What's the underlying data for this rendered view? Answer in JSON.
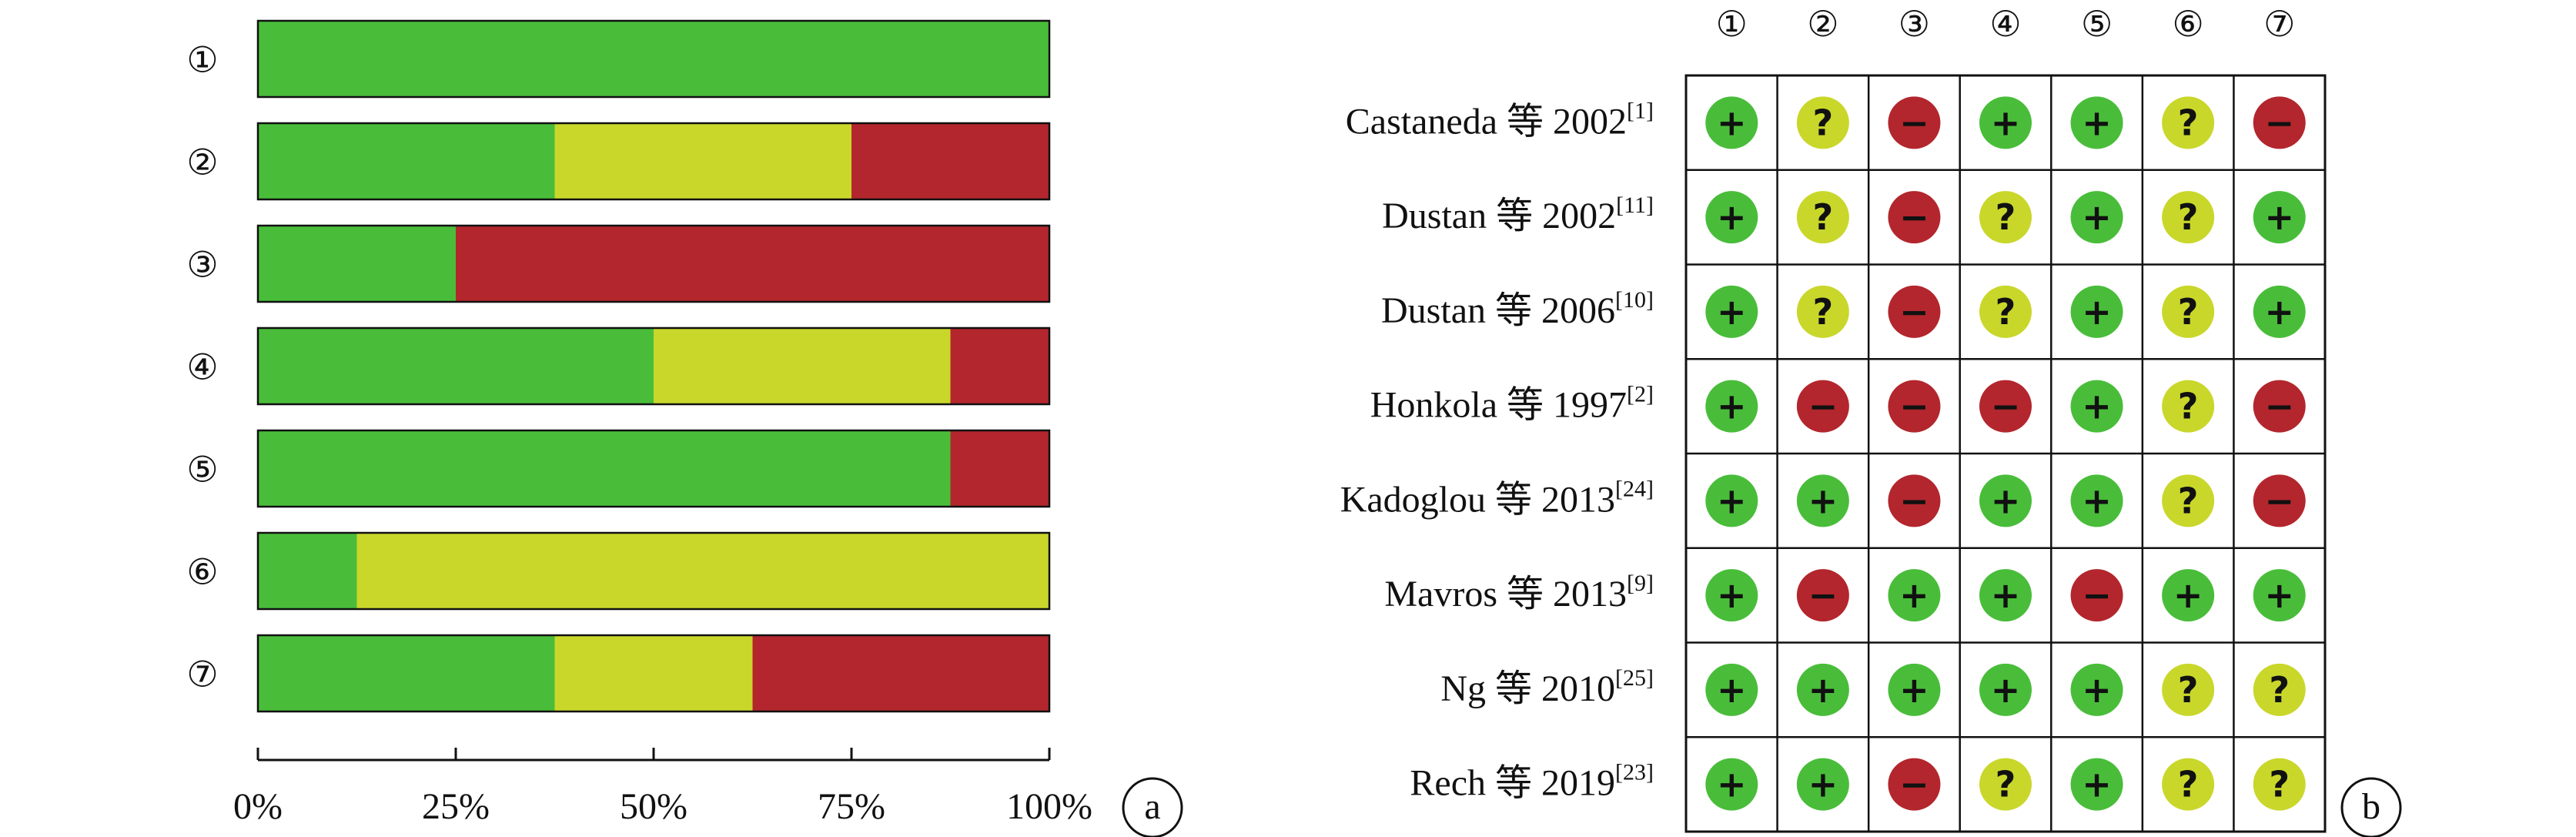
{
  "colors": {
    "low": "#49bd3a",
    "unclear": "#c9d72b",
    "high": "#b3262d",
    "frame": "#111111"
  },
  "panel_labels": [
    "a",
    "b"
  ],
  "domains": [
    "①",
    "②",
    "③",
    "④",
    "⑤",
    "⑥",
    "⑦"
  ],
  "chart_data": [
    {
      "type": "bar",
      "categories": [
        "①",
        "②",
        "③",
        "④",
        "⑤",
        "⑥",
        "⑦"
      ],
      "series": [
        {
          "key": "low",
          "values": [
            100,
            37.5,
            25,
            50,
            87.5,
            12.5,
            37.5
          ]
        },
        {
          "key": "unclear",
          "values": [
            0,
            37.5,
            0,
            37.5,
            0,
            87.5,
            25
          ]
        },
        {
          "key": "high",
          "values": [
            0,
            25,
            75,
            12.5,
            12.5,
            0,
            37.5
          ]
        }
      ],
      "xlim": [
        0,
        100
      ],
      "xticks": [
        "0%",
        "25%",
        "50%",
        "75%",
        "100%"
      ]
    },
    {
      "type": "table",
      "columns": [
        "①",
        "②",
        "③",
        "④",
        "⑤",
        "⑥",
        "⑦"
      ],
      "symbols": {
        "low": "+",
        "unclear": "?",
        "high": "−"
      },
      "rows": [
        {
          "author": "Castaneda",
          "deng": "等",
          "year": "2002",
          "ref": "[1]",
          "judgements": [
            "low",
            "unclear",
            "high",
            "low",
            "low",
            "unclear",
            "high"
          ]
        },
        {
          "author": "Dustan",
          "deng": "等",
          "year": "2002",
          "ref": "[11]",
          "judgements": [
            "low",
            "unclear",
            "high",
            "unclear",
            "low",
            "unclear",
            "low"
          ]
        },
        {
          "author": "Dustan",
          "deng": "等",
          "year": "2006",
          "ref": "[10]",
          "judgements": [
            "low",
            "unclear",
            "high",
            "unclear",
            "low",
            "unclear",
            "low"
          ]
        },
        {
          "author": "Honkola",
          "deng": "等",
          "year": "1997",
          "ref": "[2]",
          "judgements": [
            "low",
            "high",
            "high",
            "high",
            "low",
            "unclear",
            "high"
          ]
        },
        {
          "author": "Kadoglou",
          "deng": "等",
          "year": "2013",
          "ref": "[24]",
          "judgements": [
            "low",
            "low",
            "high",
            "low",
            "low",
            "unclear",
            "high"
          ]
        },
        {
          "author": "Mavros",
          "deng": "等",
          "year": "2013",
          "ref": "[9]",
          "judgements": [
            "low",
            "high",
            "low",
            "low",
            "high",
            "low",
            "low"
          ]
        },
        {
          "author": "Ng",
          "deng": "等",
          "year": "2010",
          "ref": "[25]",
          "judgements": [
            "low",
            "low",
            "low",
            "low",
            "low",
            "unclear",
            "unclear"
          ]
        },
        {
          "author": "Rech",
          "deng": "等",
          "year": "2019",
          "ref": "[23]",
          "judgements": [
            "low",
            "low",
            "high",
            "unclear",
            "low",
            "unclear",
            "unclear"
          ]
        }
      ]
    }
  ]
}
